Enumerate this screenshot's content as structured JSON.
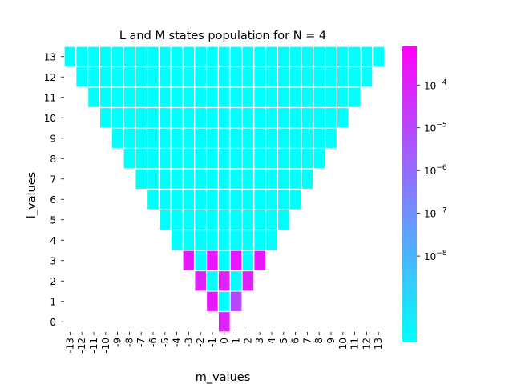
{
  "chart_data": {
    "type": "heatmap",
    "title": "L and M states population for N = 4",
    "xlabel": "m_values",
    "ylabel": "l_values",
    "x_ticks": [
      -13,
      -12,
      -11,
      -10,
      -9,
      -8,
      -7,
      -6,
      -5,
      -4,
      -3,
      -2,
      -1,
      0,
      1,
      2,
      3,
      4,
      5,
      6,
      7,
      8,
      9,
      10,
      11,
      12,
      13
    ],
    "y_ticks": [
      13,
      12,
      11,
      10,
      9,
      8,
      7,
      6,
      5,
      4,
      3,
      2,
      1,
      0
    ],
    "cell_rule": "cells exist for |m| <= l",
    "default_value": 1e-10,
    "highlighted_cells": [
      {
        "l": 3,
        "m": -3,
        "value": 0.0002
      },
      {
        "l": 3,
        "m": -1,
        "value": 0.0002
      },
      {
        "l": 3,
        "m": 1,
        "value": 0.0002
      },
      {
        "l": 3,
        "m": 3,
        "value": 0.0002
      },
      {
        "l": 2,
        "m": -2,
        "value": 0.0001
      },
      {
        "l": 2,
        "m": 0,
        "value": 0.0001
      },
      {
        "l": 2,
        "m": 2,
        "value": 0.0001
      },
      {
        "l": 1,
        "m": -1,
        "value": 0.0002
      },
      {
        "l": 1,
        "m": 1,
        "value": 1e-05
      },
      {
        "l": 0,
        "m": 0,
        "value": 0.0001
      }
    ],
    "colorbar": {
      "colormap": "cool",
      "scale": "log",
      "vmin": 1e-10,
      "vmax": 0.0008,
      "ticks": [
        {
          "value": 0.0001,
          "base": "10",
          "exp": "−4"
        },
        {
          "value": 1e-05,
          "base": "10",
          "exp": "−5"
        },
        {
          "value": 1e-06,
          "base": "10",
          "exp": "−6"
        },
        {
          "value": 1e-07,
          "base": "10",
          "exp": "−7"
        },
        {
          "value": 1e-08,
          "base": "10",
          "exp": "−8"
        }
      ]
    },
    "colors": {
      "low": "#00ffff",
      "high": "#ff00ff"
    },
    "grid": false,
    "legend": "colorbar-right"
  }
}
